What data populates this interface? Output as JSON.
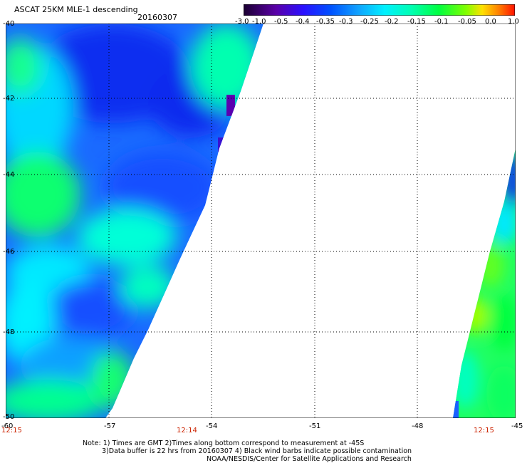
{
  "header": {
    "title": "ASCAT 25KM MLE-1 descending",
    "date": "20160307"
  },
  "colorbar": {
    "labels": [
      "-3.0",
      "-1.0",
      "-0.5",
      "-0.4",
      "-0.35",
      "-0.3",
      "-0.25",
      "-0.2",
      "-0.15",
      "-0.1",
      "-0.05",
      "0.0",
      "1.0"
    ],
    "colors": [
      "#2a0040",
      "#6a00a8",
      "#2a00ff",
      "#0040ff",
      "#0a6aff",
      "#1aa0ff",
      "#00e0ff",
      "#00ffc8",
      "#00ff70",
      "#20ff20",
      "#9bff00",
      "#ffd400",
      "#ff7a00",
      "#ff2000"
    ]
  },
  "axes": {
    "y_ticks": [
      "-40",
      "-42",
      "-44",
      "-46",
      "-48",
      "-50"
    ],
    "x_ticks": [
      "-60",
      "-57",
      "-54",
      "-51",
      "-48",
      "-45"
    ],
    "times": [
      "12:15",
      "12:14",
      "12:15"
    ]
  },
  "notes": {
    "line1": "Note: 1) Times are GMT 2)Times along bottom correspond to measurement at -45S",
    "line2": "3)Data buffer is 22 hrs from 20160307 4) Black wind barbs indicate possible contamination",
    "line3": "NOAA/NESDIS/Center for Satellite Applications and Research"
  }
}
